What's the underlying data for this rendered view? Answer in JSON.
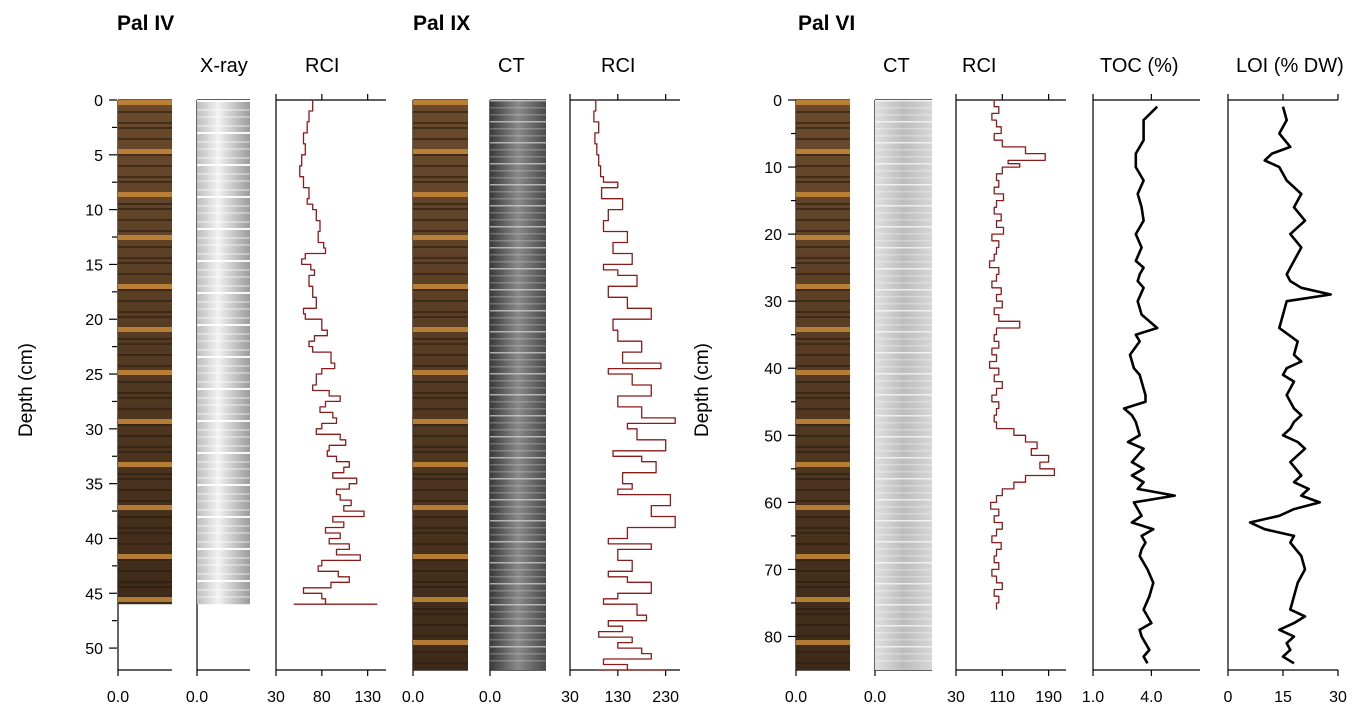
{
  "chart_data": [
    {
      "type": "line",
      "core": "Pal IV",
      "ylabel": "Depth (cm)",
      "ylim": [
        0,
        52
      ],
      "yticks": [
        "0",
        "5",
        "10",
        "15",
        "20",
        "25",
        "30",
        "35",
        "40",
        "45",
        "50"
      ],
      "tracks": [
        {
          "label": "",
          "type": "image",
          "xticks": [
            "0.0"
          ],
          "image": "core-photo",
          "core_bottom": 46
        },
        {
          "label": "X-ray",
          "type": "image",
          "xticks": [
            "0.0"
          ],
          "image": "x-ray",
          "core_bottom": 46
        },
        {
          "label": "RCI",
          "type": "line",
          "color": "#8b1a1a",
          "xlim": [
            30,
            150
          ],
          "xticks": [
            "30",
            "80",
            "130"
          ],
          "x": [
            72,
            70,
            66,
            64,
            60,
            62,
            58,
            56,
            60,
            66,
            64,
            70,
            74,
            78,
            76,
            82,
            84,
            62,
            58,
            68,
            72,
            66,
            70,
            74,
            60,
            62,
            80,
            86,
            72,
            66,
            70,
            90,
            94,
            80,
            74,
            70,
            88,
            100,
            84,
            78,
            92,
            96,
            80,
            74,
            100,
            106,
            88,
            86,
            96,
            110,
            104,
            92,
            118,
            110,
            96,
            100,
            112,
            104,
            126,
            92,
            104,
            84,
            100,
            88,
            110,
            96,
            122,
            80,
            76,
            98,
            110,
            90,
            60,
            80,
            84,
            66,
            54,
            72,
            90,
            96,
            66,
            52,
            82,
            90,
            50,
            64,
            96,
            120,
            80,
            86,
            140,
            122,
            56
          ],
          "y": [
            0,
            1,
            2,
            3,
            4,
            5,
            6,
            7,
            8,
            9,
            9.5,
            10,
            11,
            12,
            13,
            13.5,
            14,
            14.5,
            15,
            15.5,
            16,
            17,
            18,
            19,
            19.5,
            20,
            21,
            21.5,
            22,
            22.5,
            23,
            24,
            24.5,
            25,
            26,
            26.5,
            27,
            27.5,
            28,
            28.5,
            29,
            29.5,
            30,
            30.5,
            31,
            31.5,
            32,
            32.5,
            33,
            33.5,
            34,
            34.5,
            35,
            35.5,
            36,
            36.5,
            37,
            37.5,
            38,
            38.5,
            39,
            39.5,
            40,
            40.5,
            41,
            41.5,
            42,
            42.5,
            43,
            43.5,
            44,
            44.5,
            45,
            45.5,
            46,
            46,
            46,
            46,
            46,
            46,
            46,
            46,
            46,
            46,
            46,
            46,
            46,
            46,
            46,
            46,
            46,
            46,
            46
          ]
        }
      ]
    },
    {
      "type": "line",
      "core": "Pal IX",
      "ylim": [
        0,
        52
      ],
      "tracks": [
        {
          "label": "",
          "type": "image",
          "xticks": [
            "0.0"
          ],
          "image": "core-photo",
          "core_bottom": 52
        },
        {
          "label": "CT",
          "type": "image",
          "xticks": [
            "0.0"
          ],
          "image": "ct-scan",
          "core_bottom": 52
        },
        {
          "label": "RCI",
          "type": "line",
          "color": "#8b1a1a",
          "xlim": [
            30,
            260
          ],
          "xticks": [
            "30",
            "130",
            "230"
          ],
          "x": [
            88,
            84,
            80,
            90,
            82,
            86,
            90,
            94,
            100,
            130,
            96,
            140,
            110,
            100,
            150,
            120,
            160,
            100,
            130,
            170,
            110,
            150,
            200,
            120,
            130,
            180,
            140,
            220,
            110,
            160,
            200,
            130,
            180,
            250,
            150,
            170,
            230,
            120,
            180,
            210,
            140,
            160,
            130,
            240,
            200,
            250,
            150,
            110,
            200,
            130,
            160,
            110,
            150,
            200,
            130,
            100,
            170,
            190,
            110,
            140,
            90,
            160,
            130,
            180,
            200,
            100,
            150,
            220,
            120,
            90,
            140,
            110,
            170,
            150,
            120,
            230,
            200,
            140
          ],
          "y": [
            0,
            1,
            2,
            3,
            4,
            5,
            6,
            7,
            7.5,
            8,
            9,
            10,
            11,
            12,
            13,
            14,
            15,
            15.5,
            16,
            17,
            18,
            19,
            20,
            21,
            22,
            23,
            24,
            24.5,
            25,
            26,
            27,
            28,
            29,
            29.5,
            30,
            31,
            32,
            32.5,
            33,
            34,
            35,
            35.5,
            36,
            37,
            38,
            39,
            40,
            40.5,
            41,
            42,
            43,
            43.5,
            44,
            45,
            45.5,
            46,
            47,
            47.5,
            48,
            48.5,
            49,
            49.5,
            50,
            50.5,
            51,
            51.5,
            52,
            52,
            52,
            52,
            52,
            52,
            52,
            52,
            52,
            52,
            52,
            52
          ]
        }
      ]
    },
    {
      "type": "line",
      "core": "Pal VI",
      "ylabel": "Depth (cm)",
      "ylim": [
        0,
        85
      ],
      "yticks": [
        "0",
        "10",
        "20",
        "30",
        "40",
        "50",
        "60",
        "70",
        "80"
      ],
      "tracks": [
        {
          "label": "",
          "type": "image",
          "xticks": [
            "0.0"
          ],
          "image": "core-photo",
          "core_bottom": 85
        },
        {
          "label": "CT",
          "type": "image",
          "xticks": [
            "0.0"
          ],
          "image": "ct-scan",
          "core_bottom": 85
        },
        {
          "label": "RCI",
          "type": "line",
          "color": "#8b1a1a",
          "xlim": [
            30,
            220
          ],
          "xticks": [
            "30",
            "110",
            "190"
          ],
          "x": [
            100,
            96,
            104,
            92,
            100,
            108,
            96,
            110,
            150,
            184,
            120,
            140,
            110,
            100,
            104,
            96,
            112,
            100,
            96,
            108,
            100,
            112,
            92,
            104,
            100,
            96,
            88,
            104,
            100,
            92,
            108,
            100,
            110,
            96,
            104,
            140,
            100,
            96,
            104,
            92,
            100,
            88,
            104,
            96,
            110,
            100,
            92,
            104,
            100,
            96,
            100,
            130,
            150,
            170,
            160,
            190,
            175,
            200,
            150,
            130,
            110,
            100,
            90,
            104,
            96,
            110,
            100,
            92,
            108,
            100,
            96,
            104,
            92,
            100,
            110,
            96,
            104,
            100
          ],
          "y": [
            0,
            1,
            2,
            3,
            4,
            5,
            6,
            7,
            8,
            9,
            9.5,
            10,
            11,
            12,
            13,
            14,
            15,
            16,
            17,
            18,
            19,
            20,
            21,
            22,
            23,
            24,
            25,
            26,
            27,
            28,
            29,
            30,
            31,
            32,
            33,
            34,
            35,
            36,
            37,
            38,
            39,
            40,
            41,
            42,
            43,
            44,
            45,
            46,
            47,
            48,
            49,
            50,
            51,
            52,
            53,
            54,
            55,
            56,
            57,
            58,
            59,
            60,
            61,
            62,
            63,
            64,
            65,
            66,
            67,
            68,
            69,
            70,
            71,
            72,
            73,
            74,
            75,
            76
          ]
        },
        {
          "label": "TOC (%)",
          "type": "line",
          "color": "#000000",
          "xlim": [
            1.0,
            6.5
          ],
          "xticks": [
            "1.0",
            "4.0"
          ],
          "x": [
            4.3,
            3.6,
            3.6,
            3.2,
            3.2,
            3.6,
            3.3,
            3.5,
            3.6,
            3.2,
            3.5,
            3.2,
            3.6,
            3.4,
            3.3,
            3.6,
            3.3,
            3.5,
            4.3,
            3.2,
            3.4,
            2.9,
            3.1,
            3.4,
            3.5,
            3.7,
            3.7,
            2.6,
            3.0,
            3.2,
            3.4,
            2.8,
            3.6,
            3.0,
            3.6,
            3.0,
            3.6,
            3.3,
            5.2,
            3.1,
            3.5,
            3.0,
            4.1,
            3.5,
            3.7,
            3.5,
            3.4,
            3.8,
            4.1,
            3.9,
            3.6,
            4.0,
            3.4,
            3.5,
            3.9,
            3.6,
            3.8
          ],
          "y": [
            1,
            3,
            6,
            8,
            10,
            12,
            14,
            16,
            18,
            20,
            22,
            24,
            25,
            26,
            27,
            28,
            30,
            32,
            34,
            35,
            36,
            38,
            40,
            41,
            42,
            44,
            45,
            46,
            47,
            48,
            50,
            51,
            52,
            54,
            55,
            56,
            57,
            58,
            59,
            60,
            62,
            63,
            64,
            65,
            66,
            67,
            68,
            70,
            72,
            74,
            76,
            78,
            79,
            80,
            82,
            83,
            84
          ]
        },
        {
          "label": "LOI (% DW)",
          "type": "line",
          "color": "#000000",
          "xlim": [
            0,
            30
          ],
          "xticks": [
            "0",
            "15",
            "30"
          ],
          "x": [
            15,
            16,
            14,
            17,
            12,
            10,
            14,
            16,
            20,
            18,
            21,
            17,
            20,
            18,
            16,
            17,
            20,
            28,
            16,
            15,
            14,
            19,
            18,
            20,
            16,
            15,
            18,
            16,
            18,
            20,
            18,
            17,
            15,
            19,
            21,
            17,
            20,
            18,
            22,
            20,
            25,
            18,
            14,
            6,
            10,
            18,
            17,
            20,
            21,
            19,
            18,
            17,
            21,
            18,
            14,
            18,
            16,
            17,
            15,
            18
          ],
          "y": [
            1,
            3,
            5,
            7,
            8,
            9,
            10,
            12,
            14,
            16,
            18,
            20,
            22,
            24,
            26,
            27,
            28,
            29,
            30,
            32,
            34,
            36,
            38,
            39,
            40,
            41,
            42,
            44,
            46,
            47,
            48,
            49,
            50,
            51,
            52,
            54,
            56,
            57,
            58,
            59,
            60,
            61,
            62,
            63,
            64,
            65,
            66,
            68,
            70,
            72,
            74,
            76,
            77,
            78,
            79,
            80,
            81,
            82,
            83,
            84
          ]
        }
      ]
    }
  ],
  "colors": {
    "rci": "#8b1a1a",
    "profile": "#000000",
    "photo": "#5a3a1c",
    "photo_band": "#c98a3a",
    "xray": "#cfcfcf",
    "ct": "#666666"
  }
}
